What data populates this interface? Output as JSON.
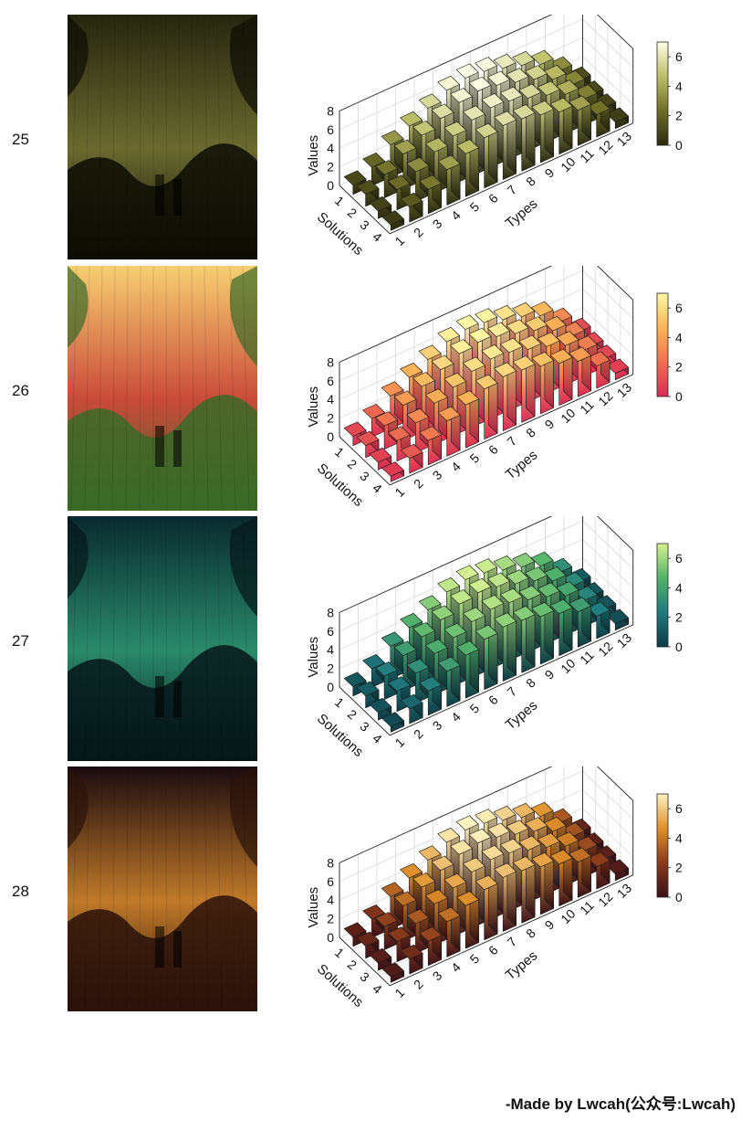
{
  "footer": {
    "credit": "-Made by Lwcah(公众号:Lwcah)"
  },
  "shared_chart": {
    "type": "bar3d",
    "zlabel": "Values",
    "ylabel": "Solutions",
    "xlabel": "Types",
    "x_ticks": [
      "1",
      "2",
      "3",
      "4",
      "5",
      "6",
      "7",
      "8",
      "9",
      "10",
      "11",
      "12",
      "13"
    ],
    "y_ticks": [
      "1",
      "2",
      "3",
      "4"
    ],
    "z_ticks": [
      "0",
      "2",
      "4",
      "6",
      "8"
    ],
    "zlim": [
      0,
      8
    ],
    "colorbar_ticks": [
      "0",
      "2",
      "4",
      "6"
    ],
    "grid": true
  },
  "chart_data": [
    {
      "type": "bar3d",
      "id": "25",
      "colormap": [
        "#2a2a10",
        "#6f6f28",
        "#bcbf68",
        "#ffffe8"
      ],
      "xlabel": "Types",
      "ylabel": "Solutions",
      "zlabel": "Values",
      "x": [
        1,
        2,
        3,
        4,
        5,
        6,
        7,
        8,
        9,
        10,
        11,
        12,
        13
      ],
      "y": [
        1,
        2,
        3,
        4
      ],
      "values": [
        [
          1.0,
          2.0,
          3.5,
          4.6,
          5.6,
          6.6,
          7.0,
          6.8,
          6.2,
          5.6,
          4.8,
          3.2,
          1.2
        ],
        [
          1.3,
          2.5,
          3.8,
          4.9,
          5.8,
          6.6,
          6.9,
          6.6,
          6.0,
          5.4,
          4.5,
          3.0,
          1.0
        ],
        [
          0.8,
          2.2,
          3.2,
          4.4,
          5.2,
          6.0,
          6.4,
          6.2,
          5.6,
          5.0,
          4.2,
          2.8,
          0.9
        ],
        [
          0.6,
          1.6,
          2.6,
          3.8,
          4.6,
          5.4,
          5.8,
          5.6,
          5.1,
          4.5,
          3.8,
          2.4,
          0.7
        ]
      ],
      "colorbar_range": [
        0,
        7
      ],
      "poster": {
        "sky": "#262610",
        "mid": "#6a6a30",
        "ground": "#0d0d05"
      }
    },
    {
      "type": "bar3d",
      "id": "26",
      "colormap": [
        "#d92a55",
        "#f07050",
        "#fbb456",
        "#fffaa8"
      ],
      "xlabel": "Types",
      "ylabel": "Solutions",
      "zlabel": "Values",
      "x": [
        1,
        2,
        3,
        4,
        5,
        6,
        7,
        8,
        9,
        10,
        11,
        12,
        13
      ],
      "y": [
        1,
        2,
        3,
        4
      ],
      "values": [
        [
          1.0,
          2.0,
          3.5,
          4.6,
          5.6,
          6.6,
          7.0,
          6.8,
          6.2,
          5.6,
          4.8,
          3.2,
          1.2
        ],
        [
          1.3,
          2.5,
          3.8,
          4.9,
          5.8,
          6.6,
          6.9,
          6.6,
          6.0,
          5.4,
          4.5,
          3.0,
          1.0
        ],
        [
          0.8,
          2.2,
          3.2,
          4.4,
          5.2,
          6.0,
          6.4,
          6.2,
          5.6,
          5.0,
          4.2,
          2.8,
          0.9
        ],
        [
          0.6,
          1.6,
          2.6,
          3.8,
          4.6,
          5.4,
          5.8,
          5.6,
          5.1,
          4.5,
          3.8,
          2.4,
          0.7
        ]
      ],
      "colorbar_range": [
        0,
        7
      ],
      "poster": {
        "sky": "#f7cf72",
        "mid": "#c84a3a",
        "ground": "#3a6a28"
      }
    },
    {
      "type": "bar3d",
      "id": "27",
      "colormap": [
        "#0e3b44",
        "#1f7a7e",
        "#52b26a",
        "#d5f290"
      ],
      "xlabel": "Types",
      "ylabel": "Solutions",
      "zlabel": "Values",
      "x": [
        1,
        2,
        3,
        4,
        5,
        6,
        7,
        8,
        9,
        10,
        11,
        12,
        13
      ],
      "y": [
        1,
        2,
        3,
        4
      ],
      "values": [
        [
          1.0,
          2.0,
          3.5,
          4.6,
          5.6,
          6.6,
          7.0,
          6.8,
          6.2,
          5.6,
          4.8,
          3.2,
          1.2
        ],
        [
          1.3,
          2.5,
          3.8,
          4.9,
          5.8,
          6.6,
          6.9,
          6.6,
          6.0,
          5.4,
          4.5,
          3.0,
          1.0
        ],
        [
          0.8,
          2.2,
          3.2,
          4.4,
          5.2,
          6.0,
          6.4,
          6.2,
          5.6,
          5.0,
          4.2,
          2.8,
          0.9
        ],
        [
          0.6,
          1.6,
          2.6,
          3.8,
          4.6,
          5.4,
          5.8,
          5.6,
          5.1,
          4.5,
          3.8,
          2.4,
          0.7
        ]
      ],
      "colorbar_range": [
        0,
        7
      ],
      "poster": {
        "sky": "#0a2a2e",
        "mid": "#2a8a6a",
        "ground": "#06171a"
      }
    },
    {
      "type": "bar3d",
      "id": "28",
      "colormap": [
        "#3a1018",
        "#8a3a1c",
        "#e0902a",
        "#fff3c0"
      ],
      "xlabel": "Types",
      "ylabel": "Solutions",
      "zlabel": "Values",
      "x": [
        1,
        2,
        3,
        4,
        5,
        6,
        7,
        8,
        9,
        10,
        11,
        12,
        13
      ],
      "y": [
        1,
        2,
        3,
        4
      ],
      "values": [
        [
          1.0,
          2.0,
          3.5,
          4.6,
          5.6,
          6.6,
          7.0,
          6.8,
          6.2,
          5.6,
          4.8,
          3.2,
          1.2
        ],
        [
          1.3,
          2.5,
          3.8,
          4.9,
          5.8,
          6.6,
          6.9,
          6.6,
          6.0,
          5.4,
          4.5,
          3.0,
          1.0
        ],
        [
          0.8,
          2.2,
          3.2,
          4.4,
          5.2,
          6.0,
          6.4,
          6.2,
          5.6,
          5.0,
          4.2,
          2.8,
          0.9
        ],
        [
          0.6,
          1.6,
          2.6,
          3.8,
          4.6,
          5.4,
          5.8,
          5.6,
          5.1,
          4.5,
          3.8,
          2.4,
          0.7
        ]
      ],
      "colorbar_range": [
        0,
        7
      ],
      "poster": {
        "sky": "#1a0a10",
        "mid": "#c07a2a",
        "ground": "#2a120a"
      }
    }
  ]
}
